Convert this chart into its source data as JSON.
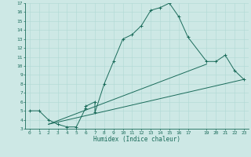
{
  "title": "",
  "xlabel": "Humidex (Indice chaleur)",
  "xlim": [
    -0.5,
    23.5
  ],
  "ylim": [
    3,
    17
  ],
  "xticks": [
    0,
    1,
    2,
    3,
    4,
    5,
    6,
    7,
    8,
    9,
    10,
    11,
    12,
    13,
    14,
    15,
    16,
    17,
    19,
    20,
    21,
    22,
    23
  ],
  "yticks": [
    3,
    4,
    5,
    6,
    7,
    8,
    9,
    10,
    11,
    12,
    13,
    14,
    15,
    16,
    17
  ],
  "bg_color": "#cde8e5",
  "line_color": "#1a6b5a",
  "grid_color": "#b0d8d4",
  "main_x": [
    0,
    1,
    2,
    3,
    4,
    5,
    6,
    6,
    7,
    7,
    8,
    9,
    10,
    11,
    12,
    13,
    14,
    15,
    16,
    17,
    19,
    20,
    21,
    22,
    23
  ],
  "main_y": [
    5,
    5,
    4,
    3.5,
    3.2,
    3.2,
    5.3,
    5.5,
    6.0,
    4.8,
    8.0,
    10.5,
    13.0,
    13.5,
    14.5,
    16.2,
    16.5,
    17.0,
    15.5,
    13.2,
    10.5,
    10.5,
    11.2,
    9.5,
    8.5
  ],
  "line1_x": [
    2,
    23
  ],
  "line1_y": [
    3.5,
    8.5
  ],
  "line2_x": [
    2,
    19
  ],
  "line2_y": [
    3.5,
    10.2
  ],
  "marker": "+"
}
